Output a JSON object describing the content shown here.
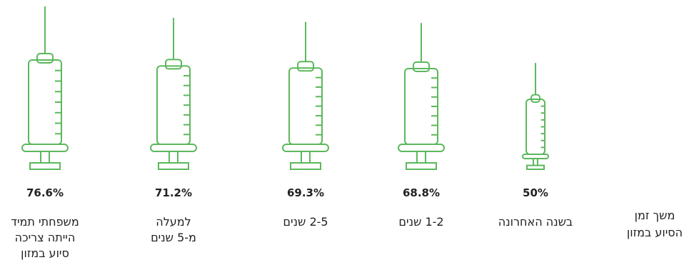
{
  "colors": {
    "syringe_stroke": "#5cb85c",
    "text": "#222222",
    "background": "#ffffff"
  },
  "chart_data": {
    "type": "bar",
    "mark": "syringe",
    "title": "",
    "xlabel": "",
    "ylabel": "",
    "axis_title_lines": [
      "משך זמן",
      "הסיוע במזון"
    ],
    "categories": [
      [
        "בשנה האחרונה"
      ],
      [
        "1-2 שנים"
      ],
      [
        "2-5 שנים"
      ],
      [
        "למעלה",
        "מ-5 שנים"
      ],
      [
        "משפחתי תמיד",
        "הייתה צריכה",
        "סיוע במזון"
      ]
    ],
    "values": [
      50,
      68.8,
      69.3,
      71.2,
      76.6
    ],
    "value_labels": [
      "50%",
      "68.8%",
      "69.3%",
      "71.2%",
      "76.6%"
    ],
    "ylim": [
      0,
      100
    ],
    "grid": false,
    "legend": "none"
  }
}
